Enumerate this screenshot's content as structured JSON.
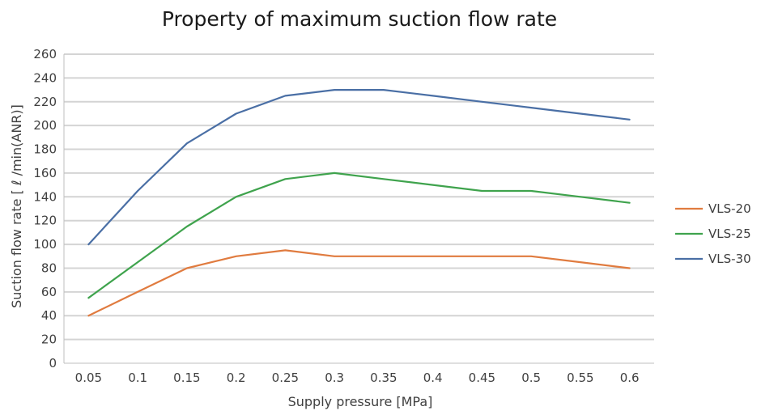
{
  "chart_data": {
    "type": "line",
    "title": "Property of maximum suction flow rate",
    "xlabel": "Supply pressure [MPa]",
    "ylabel": "Suction flow rate [ ℓ /min(ANR)]",
    "categories": [
      "0.05",
      "0.1",
      "0.15",
      "0.2",
      "0.25",
      "0.3",
      "0.35",
      "0.4",
      "0.45",
      "0.5",
      "0.55",
      "0.6"
    ],
    "ylim": [
      0,
      260
    ],
    "yticks": [
      0,
      20,
      40,
      60,
      80,
      100,
      120,
      140,
      160,
      180,
      200,
      220,
      240,
      260
    ],
    "grid": true,
    "legend_position": "right",
    "series": [
      {
        "name": "VLS-20",
        "color": "#E07B3F",
        "values": [
          40,
          60,
          80,
          90,
          95,
          90,
          90,
          90,
          90,
          90,
          85,
          80
        ]
      },
      {
        "name": "VLS-25",
        "color": "#3FA34D",
        "values": [
          55,
          85,
          115,
          140,
          155,
          160,
          155,
          150,
          145,
          145,
          140,
          135
        ]
      },
      {
        "name": "VLS-30",
        "color": "#4A6FA5",
        "values": [
          100,
          145,
          185,
          210,
          225,
          230,
          230,
          225,
          220,
          215,
          210,
          205
        ]
      }
    ]
  }
}
